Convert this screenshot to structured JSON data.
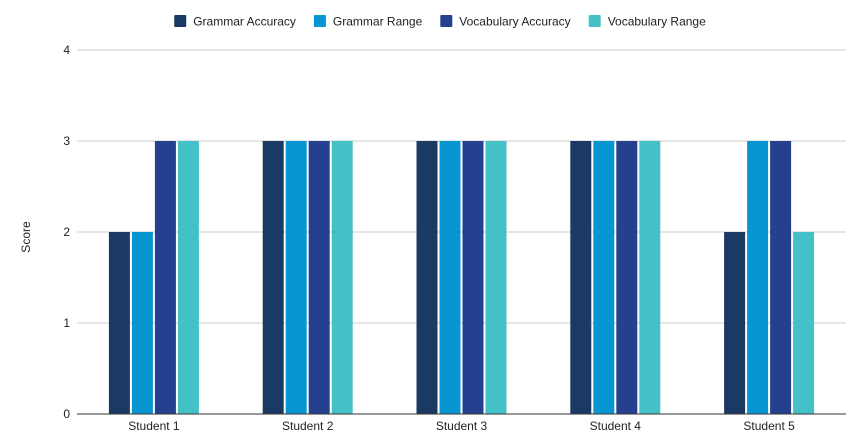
{
  "chart_data": {
    "type": "bar",
    "title": "",
    "xlabel": "",
    "ylabel": "Score",
    "ylim": [
      0,
      4
    ],
    "yticks": [
      "0",
      "1",
      "2",
      "3",
      "4"
    ],
    "grid": true,
    "legend_position": "top",
    "categories": [
      "Student 1",
      "Student 2",
      "Student 3",
      "Student 4",
      "Student 5"
    ],
    "series": [
      {
        "name": "Grammar Accuracy",
        "color": "#1b3a63",
        "values": [
          2,
          3,
          3,
          3,
          2
        ]
      },
      {
        "name": "Grammar Range",
        "color": "#0896d3",
        "values": [
          2,
          3,
          3,
          3,
          3
        ]
      },
      {
        "name": "Vocabulary Accuracy",
        "color": "#25408f",
        "values": [
          3,
          3,
          3,
          3,
          3
        ]
      },
      {
        "name": "Vocabulary Range",
        "color": "#44c1c7",
        "values": [
          3,
          3,
          3,
          3,
          2
        ]
      }
    ]
  }
}
